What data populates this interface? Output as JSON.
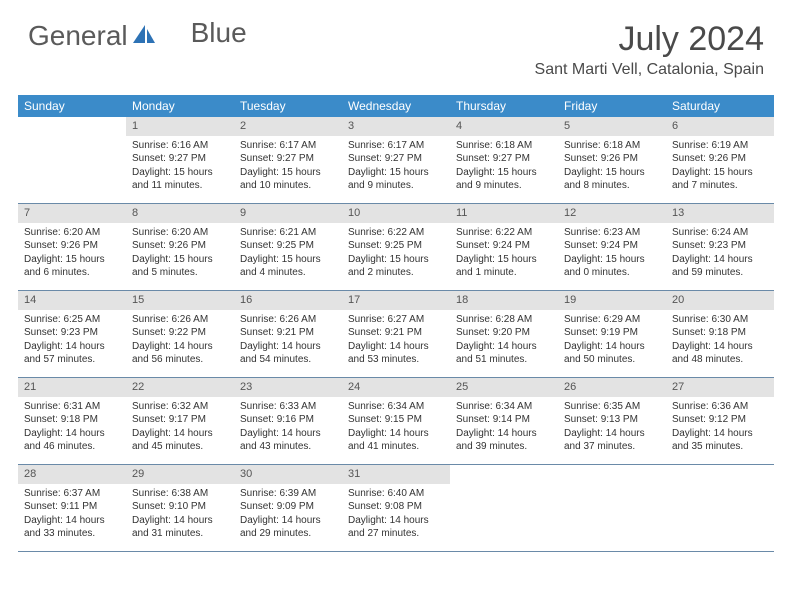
{
  "logo": {
    "general": "General",
    "blue": "Blue"
  },
  "title": "July 2024",
  "location": "Sant Marti Vell, Catalonia, Spain",
  "colors": {
    "header_bg": "#3b8bc9",
    "daynum_bg": "#e3e3e3",
    "border": "#6a8aa8",
    "text": "#333333",
    "logo_text": "#5a5a5a",
    "logo_accent": "#2d72b5"
  },
  "dow": [
    "Sunday",
    "Monday",
    "Tuesday",
    "Wednesday",
    "Thursday",
    "Friday",
    "Saturday"
  ],
  "weeks": [
    [
      {
        "num": "",
        "sunrise": "",
        "sunset": "",
        "daylight": ""
      },
      {
        "num": "1",
        "sunrise": "Sunrise: 6:16 AM",
        "sunset": "Sunset: 9:27 PM",
        "daylight": "Daylight: 15 hours and 11 minutes."
      },
      {
        "num": "2",
        "sunrise": "Sunrise: 6:17 AM",
        "sunset": "Sunset: 9:27 PM",
        "daylight": "Daylight: 15 hours and 10 minutes."
      },
      {
        "num": "3",
        "sunrise": "Sunrise: 6:17 AM",
        "sunset": "Sunset: 9:27 PM",
        "daylight": "Daylight: 15 hours and 9 minutes."
      },
      {
        "num": "4",
        "sunrise": "Sunrise: 6:18 AM",
        "sunset": "Sunset: 9:27 PM",
        "daylight": "Daylight: 15 hours and 9 minutes."
      },
      {
        "num": "5",
        "sunrise": "Sunrise: 6:18 AM",
        "sunset": "Sunset: 9:26 PM",
        "daylight": "Daylight: 15 hours and 8 minutes."
      },
      {
        "num": "6",
        "sunrise": "Sunrise: 6:19 AM",
        "sunset": "Sunset: 9:26 PM",
        "daylight": "Daylight: 15 hours and 7 minutes."
      }
    ],
    [
      {
        "num": "7",
        "sunrise": "Sunrise: 6:20 AM",
        "sunset": "Sunset: 9:26 PM",
        "daylight": "Daylight: 15 hours and 6 minutes."
      },
      {
        "num": "8",
        "sunrise": "Sunrise: 6:20 AM",
        "sunset": "Sunset: 9:26 PM",
        "daylight": "Daylight: 15 hours and 5 minutes."
      },
      {
        "num": "9",
        "sunrise": "Sunrise: 6:21 AM",
        "sunset": "Sunset: 9:25 PM",
        "daylight": "Daylight: 15 hours and 4 minutes."
      },
      {
        "num": "10",
        "sunrise": "Sunrise: 6:22 AM",
        "sunset": "Sunset: 9:25 PM",
        "daylight": "Daylight: 15 hours and 2 minutes."
      },
      {
        "num": "11",
        "sunrise": "Sunrise: 6:22 AM",
        "sunset": "Sunset: 9:24 PM",
        "daylight": "Daylight: 15 hours and 1 minute."
      },
      {
        "num": "12",
        "sunrise": "Sunrise: 6:23 AM",
        "sunset": "Sunset: 9:24 PM",
        "daylight": "Daylight: 15 hours and 0 minutes."
      },
      {
        "num": "13",
        "sunrise": "Sunrise: 6:24 AM",
        "sunset": "Sunset: 9:23 PM",
        "daylight": "Daylight: 14 hours and 59 minutes."
      }
    ],
    [
      {
        "num": "14",
        "sunrise": "Sunrise: 6:25 AM",
        "sunset": "Sunset: 9:23 PM",
        "daylight": "Daylight: 14 hours and 57 minutes."
      },
      {
        "num": "15",
        "sunrise": "Sunrise: 6:26 AM",
        "sunset": "Sunset: 9:22 PM",
        "daylight": "Daylight: 14 hours and 56 minutes."
      },
      {
        "num": "16",
        "sunrise": "Sunrise: 6:26 AM",
        "sunset": "Sunset: 9:21 PM",
        "daylight": "Daylight: 14 hours and 54 minutes."
      },
      {
        "num": "17",
        "sunrise": "Sunrise: 6:27 AM",
        "sunset": "Sunset: 9:21 PM",
        "daylight": "Daylight: 14 hours and 53 minutes."
      },
      {
        "num": "18",
        "sunrise": "Sunrise: 6:28 AM",
        "sunset": "Sunset: 9:20 PM",
        "daylight": "Daylight: 14 hours and 51 minutes."
      },
      {
        "num": "19",
        "sunrise": "Sunrise: 6:29 AM",
        "sunset": "Sunset: 9:19 PM",
        "daylight": "Daylight: 14 hours and 50 minutes."
      },
      {
        "num": "20",
        "sunrise": "Sunrise: 6:30 AM",
        "sunset": "Sunset: 9:18 PM",
        "daylight": "Daylight: 14 hours and 48 minutes."
      }
    ],
    [
      {
        "num": "21",
        "sunrise": "Sunrise: 6:31 AM",
        "sunset": "Sunset: 9:18 PM",
        "daylight": "Daylight: 14 hours and 46 minutes."
      },
      {
        "num": "22",
        "sunrise": "Sunrise: 6:32 AM",
        "sunset": "Sunset: 9:17 PM",
        "daylight": "Daylight: 14 hours and 45 minutes."
      },
      {
        "num": "23",
        "sunrise": "Sunrise: 6:33 AM",
        "sunset": "Sunset: 9:16 PM",
        "daylight": "Daylight: 14 hours and 43 minutes."
      },
      {
        "num": "24",
        "sunrise": "Sunrise: 6:34 AM",
        "sunset": "Sunset: 9:15 PM",
        "daylight": "Daylight: 14 hours and 41 minutes."
      },
      {
        "num": "25",
        "sunrise": "Sunrise: 6:34 AM",
        "sunset": "Sunset: 9:14 PM",
        "daylight": "Daylight: 14 hours and 39 minutes."
      },
      {
        "num": "26",
        "sunrise": "Sunrise: 6:35 AM",
        "sunset": "Sunset: 9:13 PM",
        "daylight": "Daylight: 14 hours and 37 minutes."
      },
      {
        "num": "27",
        "sunrise": "Sunrise: 6:36 AM",
        "sunset": "Sunset: 9:12 PM",
        "daylight": "Daylight: 14 hours and 35 minutes."
      }
    ],
    [
      {
        "num": "28",
        "sunrise": "Sunrise: 6:37 AM",
        "sunset": "Sunset: 9:11 PM",
        "daylight": "Daylight: 14 hours and 33 minutes."
      },
      {
        "num": "29",
        "sunrise": "Sunrise: 6:38 AM",
        "sunset": "Sunset: 9:10 PM",
        "daylight": "Daylight: 14 hours and 31 minutes."
      },
      {
        "num": "30",
        "sunrise": "Sunrise: 6:39 AM",
        "sunset": "Sunset: 9:09 PM",
        "daylight": "Daylight: 14 hours and 29 minutes."
      },
      {
        "num": "31",
        "sunrise": "Sunrise: 6:40 AM",
        "sunset": "Sunset: 9:08 PM",
        "daylight": "Daylight: 14 hours and 27 minutes."
      },
      {
        "num": "",
        "sunrise": "",
        "sunset": "",
        "daylight": ""
      },
      {
        "num": "",
        "sunrise": "",
        "sunset": "",
        "daylight": ""
      },
      {
        "num": "",
        "sunrise": "",
        "sunset": "",
        "daylight": ""
      }
    ]
  ]
}
